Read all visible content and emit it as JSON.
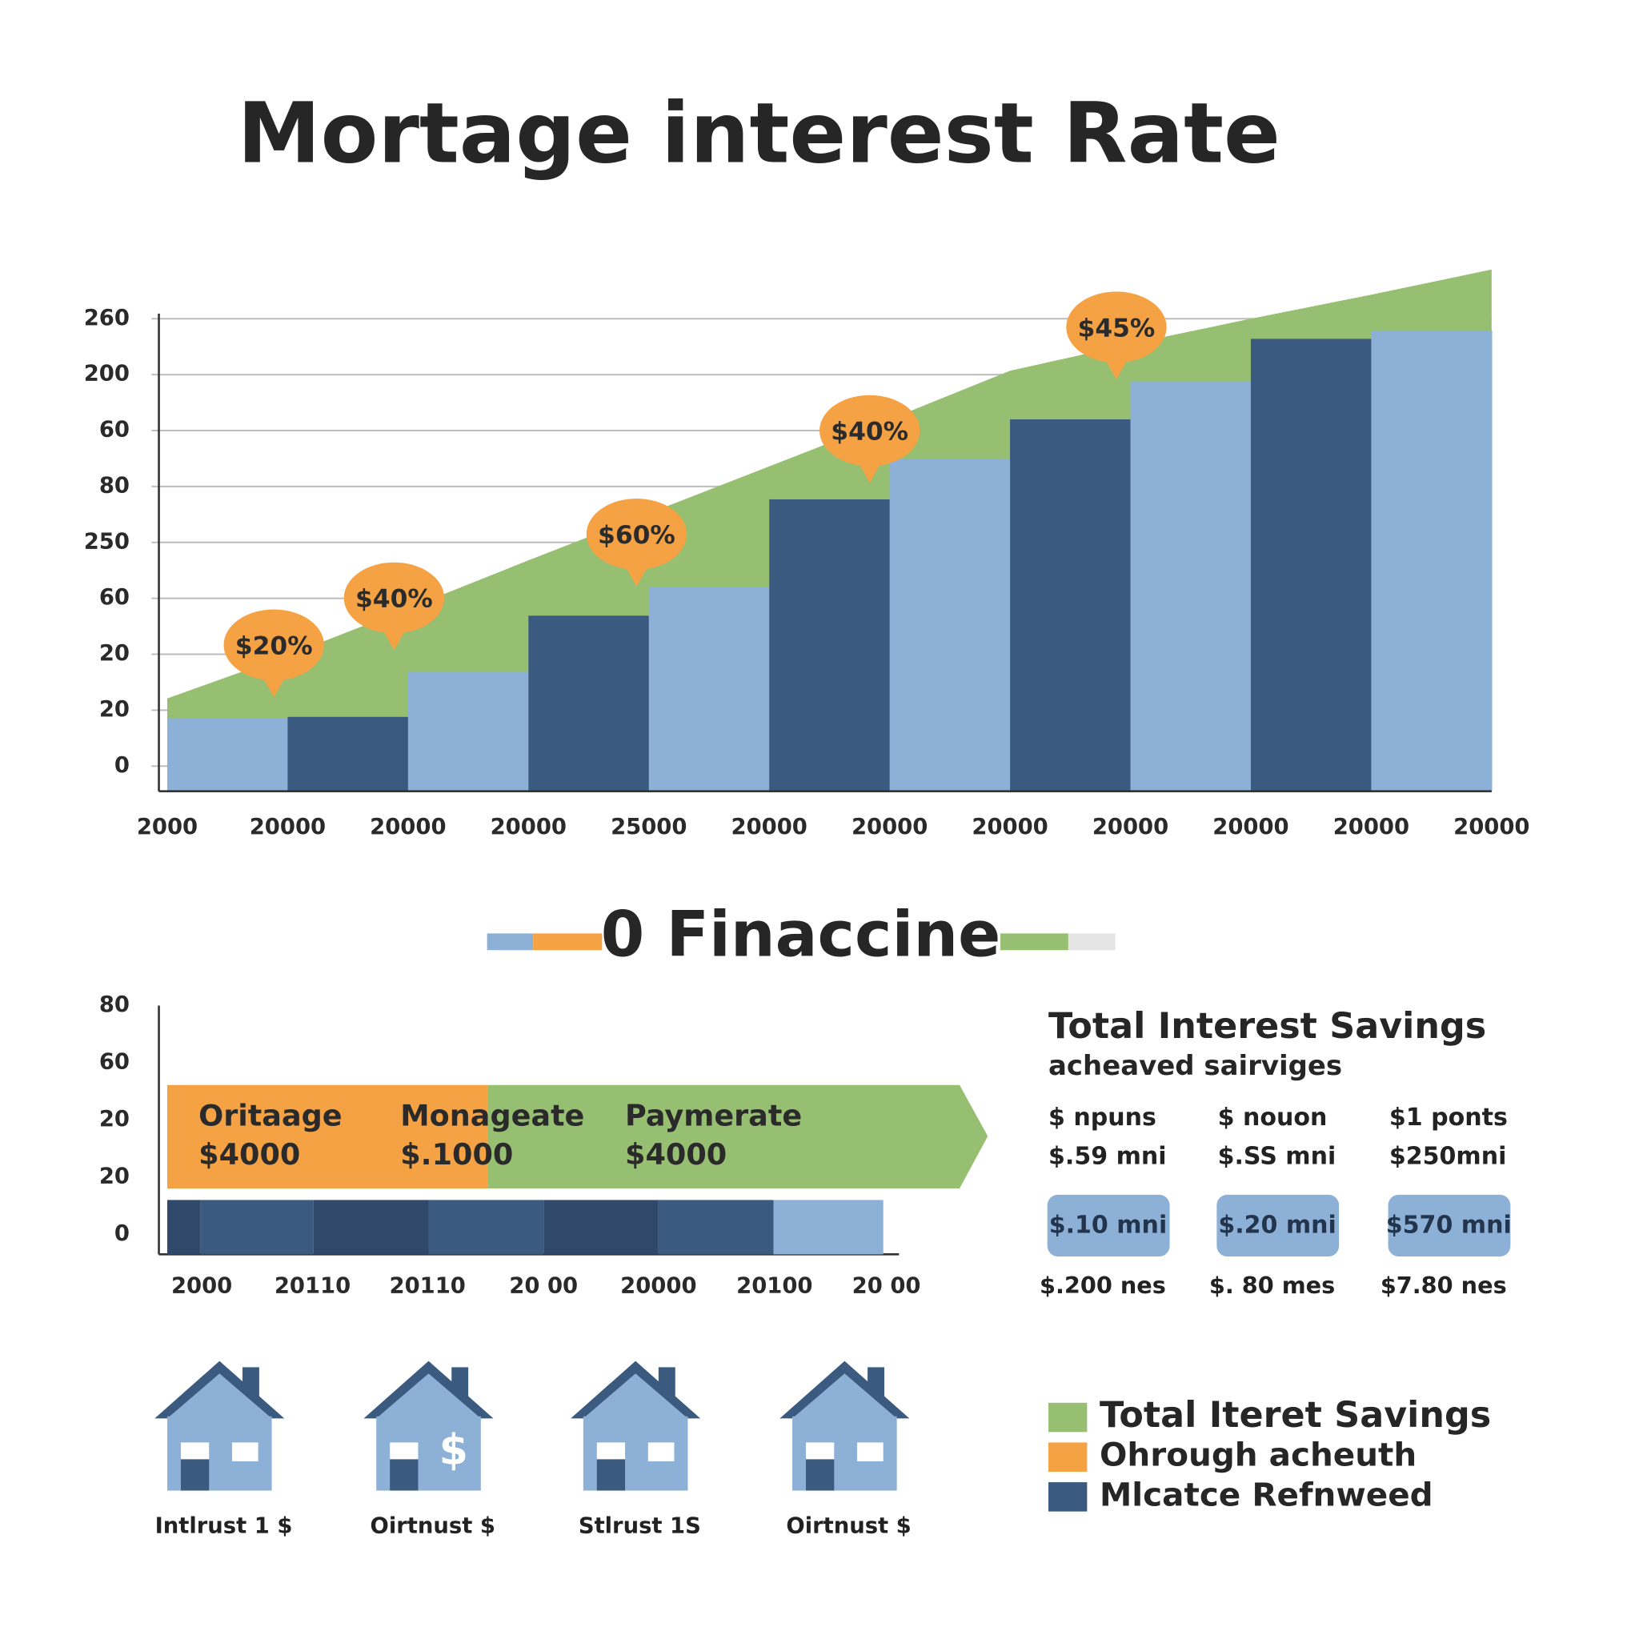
{
  "chart_data": {
    "type": "bar",
    "title": "Mortage interest Rate",
    "values": [
      0.86,
      0.88,
      1.68,
      2.69,
      3.2,
      4.77,
      5.5,
      6.2,
      6.88,
      7.64,
      7.79
    ],
    "colors": [
      "#8db0d6",
      "#3b5a80",
      "#8db0d6",
      "#3b5a80",
      "#8db0d6",
      "#3b5a80",
      "#8db0d6",
      "#3b5a80",
      "#8db0d6",
      "#3b5a80",
      "#8db0d6"
    ],
    "area": {
      "color": "#97bf72",
      "values": [
        1.21,
        1.98,
        2.82,
        3.68,
        4.52,
        5.36,
        6.2,
        7.07,
        7.55,
        8.0,
        8.43,
        8.88
      ]
    },
    "x_edge_labels": [
      "2000",
      "20000",
      "20000",
      "20000",
      "25000",
      "20000",
      "20000",
      "20000",
      "20000",
      "20000",
      "20000",
      "20000"
    ],
    "ylim": [
      -0.45,
      9
    ],
    "yticks": [
      0,
      {
        "value": 1,
        "label": "20"
      },
      {
        "value": 2,
        "label": "20"
      },
      {
        "value": 3,
        "label": "60"
      },
      {
        "value": 4,
        "label": "250"
      },
      {
        "value": 5,
        "label": "80"
      },
      {
        "value": 6,
        "label": "60"
      },
      {
        "value": 7,
        "label": "200"
      },
      {
        "value": 8,
        "label": "260"
      }
    ],
    "annotations": [
      "$20%",
      "$40%",
      "$60%",
      "$40%",
      "$45%"
    ],
    "annotation_color": "#f4a244",
    "grid": true
  },
  "financing_title": "0 Finaccine",
  "lower_chart": {
    "yticks": [
      "80",
      "60",
      "20",
      "20",
      "0"
    ],
    "banner": [
      {
        "label": "Oritaage",
        "amount": "$4000"
      },
      {
        "label": "Monageate",
        "amount": "$.1000"
      },
      {
        "label": "Paymerate",
        "amount": "$4000"
      }
    ],
    "x_labels": [
      "2000",
      "20110",
      "20110",
      "20 00",
      "20000",
      "20100",
      "20 00"
    ]
  },
  "savings": {
    "title": "Total Interest Savings",
    "subtitle": "acheaved sairviges",
    "columns": [
      {
        "line1": "$ npuns",
        "line2": "$.59 mni",
        "pill": "$.10 mni",
        "foot": "$.200 nes"
      },
      {
        "line1": "$ nouon",
        "line2": "$.SS mni",
        "pill": "$.20 mni",
        "foot": "$. 80 mes"
      },
      {
        "line1": "$1 ponts",
        "line2": "$250mni",
        "pill": "$570 mni",
        "foot": "$7.80 nes"
      }
    ]
  },
  "houses": [
    "Intlrust 1 $",
    "Oirtnust $",
    "Stlrust 1S",
    "Oirtnust $"
  ],
  "legend": [
    {
      "label": "Total Iteret Savings",
      "color": "#97bf72"
    },
    {
      "label": "Ohrough acheuth",
      "color": "#f4a244"
    },
    {
      "label": "Mlcatce Refnweed",
      "color": "#3b5a80"
    }
  ]
}
